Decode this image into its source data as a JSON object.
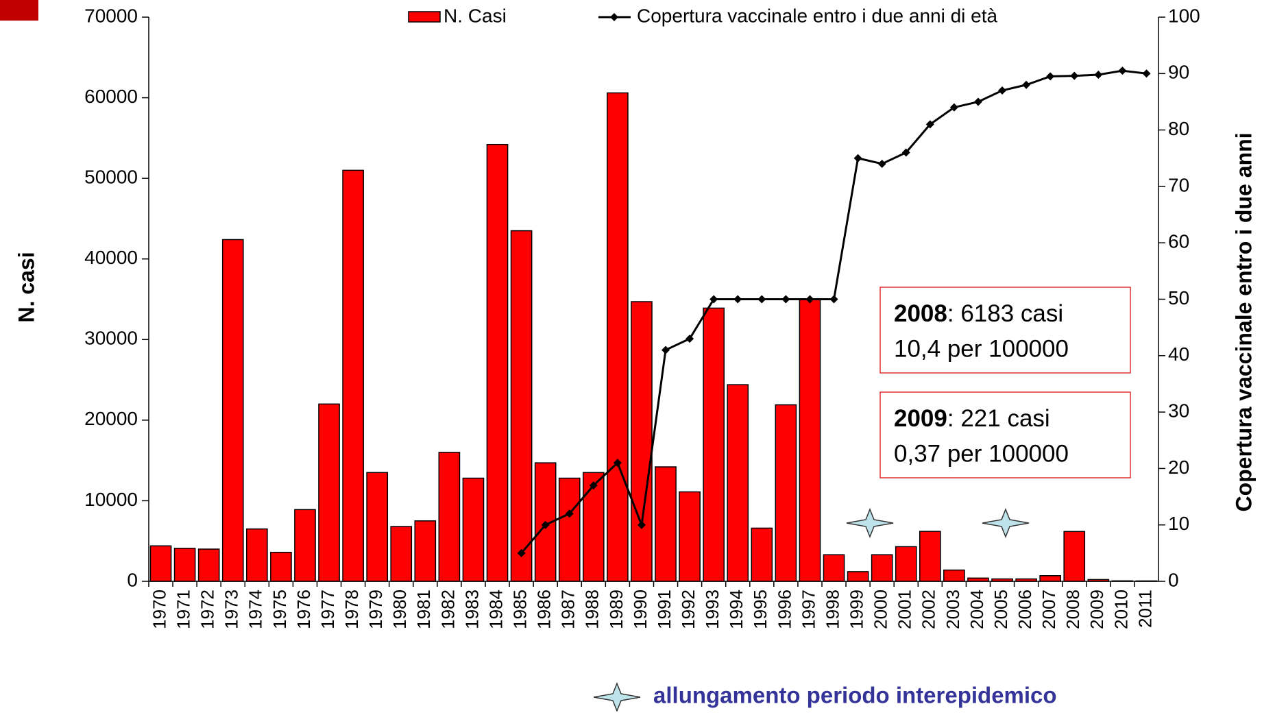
{
  "chart_data": {
    "type": "bar_line",
    "categories": [
      "1970",
      "1971",
      "1972",
      "1973",
      "1974",
      "1975",
      "1976",
      "1977",
      "1978",
      "1979",
      "1980",
      "1981",
      "1982",
      "1983",
      "1984",
      "1985",
      "1986",
      "1987",
      "1988",
      "1989",
      "1990",
      "1991",
      "1992",
      "1993",
      "1994",
      "1995",
      "1996",
      "1997",
      "1998",
      "1999",
      "2000",
      "2001",
      "2002",
      "2003",
      "2004",
      "2005",
      "2006",
      "2007",
      "2008",
      "2009",
      "2010",
      "2011"
    ],
    "series": [
      {
        "name": "N. Casi",
        "type": "bar",
        "color": "#ff0000",
        "values": [
          4400,
          4100,
          4000,
          42400,
          6500,
          3600,
          8900,
          22000,
          51000,
          13500,
          6800,
          7500,
          16000,
          12800,
          54200,
          43500,
          14700,
          12800,
          13500,
          60600,
          34700,
          14200,
          11100,
          33900,
          24400,
          6600,
          21900,
          35000,
          3300,
          1200,
          3300,
          4300,
          6200,
          1400,
          400,
          300,
          300,
          700,
          6183,
          221,
          60,
          50
        ]
      },
      {
        "name": "Copertura vaccinale entro i due anni di età",
        "type": "line",
        "axis": "y2",
        "color": "#000000",
        "values": [
          null,
          null,
          null,
          null,
          null,
          null,
          null,
          null,
          null,
          null,
          null,
          null,
          null,
          null,
          null,
          5,
          10,
          12,
          17,
          21,
          10,
          41,
          43,
          50,
          50,
          50,
          50,
          50,
          50,
          75,
          74,
          76,
          81,
          84,
          85,
          87,
          88,
          89.5,
          89.6,
          89.8,
          90.5,
          90
        ]
      }
    ],
    "ylabel": "N. casi",
    "y2label": "Copertura vaccinale entro i due anni",
    "ylim": [
      0,
      70000
    ],
    "yticks": [
      0,
      10000,
      20000,
      30000,
      40000,
      50000,
      60000,
      70000
    ],
    "y2lim": [
      0,
      100
    ],
    "y2ticks": [
      0,
      10,
      20,
      30,
      40,
      50,
      60,
      70,
      80,
      90,
      100
    ],
    "grid": false,
    "annotations": [
      {
        "bold": "2008",
        "text": ": 6183 casi",
        "line2": "10,4 per 100000"
      },
      {
        "bold": "2009",
        "text": ": 221 casi",
        "line2": "0,37 per 100000"
      }
    ],
    "star_note": "allungamento periodo interepidemico"
  }
}
